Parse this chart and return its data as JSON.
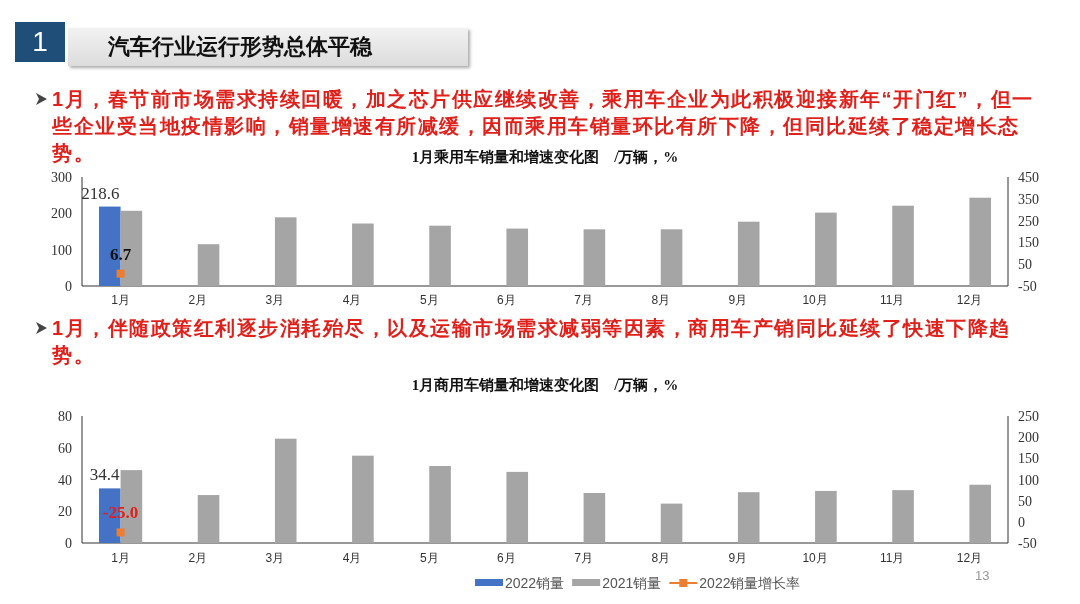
{
  "chart_data": [
    {
      "type": "bar",
      "title": "1月乘用车销量和增速变化图　/万辆，%",
      "annotations": [
        "1",
        "汽车行业运行形势总体平稳",
        "1月，春节前市场需求持续回暖，加之芯片供应继续改善，乘用车企业为此积极迎接新年“开门红”，但一些企业受当地疫情影响，销量增速有所减缓，因而乘用车销量环比有所下降，但同比延续了稳定增长态势。"
      ],
      "categories": [
        "1月",
        "2月",
        "3月",
        "4月",
        "5月",
        "6月",
        "7月",
        "8月",
        "9月",
        "10月",
        "11月",
        "12月"
      ],
      "series": [
        {
          "color": "#4472c4",
          "values": [
            218.6,
            null,
            null,
            null,
            null,
            null,
            null,
            null,
            null,
            null,
            null,
            null
          ],
          "value_labels": [
            "218.6",
            null,
            null,
            null,
            null,
            null,
            null,
            null,
            null,
            null,
            null,
            null
          ]
        },
        {
          "color": "#a5a5a5",
          "values": [
            207,
            115,
            189,
            172,
            166,
            158,
            156,
            156,
            177,
            202,
            221,
            243
          ]
        },
        {
          "type": "line",
          "axis": "y2",
          "marker": "square",
          "color": "#ed7d31",
          "values": [
            6.7,
            null,
            null,
            null,
            null,
            null,
            null,
            null,
            null,
            null,
            null,
            null
          ],
          "value_labels": [
            "6.7",
            null,
            null,
            null,
            null,
            null,
            null,
            null,
            null,
            null,
            null,
            null
          ]
        }
      ],
      "ylim": [
        0,
        300
      ],
      "yticks": [
        0,
        100,
        200,
        300
      ],
      "y2lim": [
        -50,
        450
      ],
      "y2ticks": [
        -50,
        50,
        150,
        250,
        350,
        450
      ]
    },
    {
      "type": "bar",
      "title": "1月商用车销量和增速变化图　/万辆，%",
      "annotations": [
        "1月，伴随政策红利逐步消耗殆尽，以及运输市场需求减弱等因素，商用车产销同比延续了快速下降趋势。",
        "13"
      ],
      "categories": [
        "1月",
        "2月",
        "3月",
        "4月",
        "5月",
        "6月",
        "7月",
        "8月",
        "9月",
        "10月",
        "11月",
        "12月"
      ],
      "series": [
        {
          "name": "2022销量",
          "color": "#4472c4",
          "values": [
            34.4,
            null,
            null,
            null,
            null,
            null,
            null,
            null,
            null,
            null,
            null,
            null
          ],
          "value_labels": [
            "34.4",
            null,
            null,
            null,
            null,
            null,
            null,
            null,
            null,
            null,
            null,
            null
          ]
        },
        {
          "name": "2021销量",
          "color": "#a5a5a5",
          "values": [
            45.9,
            30.2,
            65.7,
            55.0,
            48.5,
            44.8,
            31.5,
            24.8,
            32.0,
            32.8,
            33.3,
            36.7
          ]
        },
        {
          "name": "2022销量增长率",
          "type": "line",
          "axis": "y2",
          "marker": "square",
          "color": "#ed7d31",
          "values": [
            -25.0,
            null,
            null,
            null,
            null,
            null,
            null,
            null,
            null,
            null,
            null,
            null
          ],
          "value_labels": [
            "-25.0",
            null,
            null,
            null,
            null,
            null,
            null,
            null,
            null,
            null,
            null,
            null
          ]
        }
      ],
      "ylim": [
        0,
        80
      ],
      "yticks": [
        0,
        20,
        40,
        60,
        80
      ],
      "y2lim": [
        -50,
        250
      ],
      "y2ticks": [
        -50,
        0,
        50,
        100,
        150,
        200,
        250
      ],
      "legend": "bottom"
    }
  ]
}
